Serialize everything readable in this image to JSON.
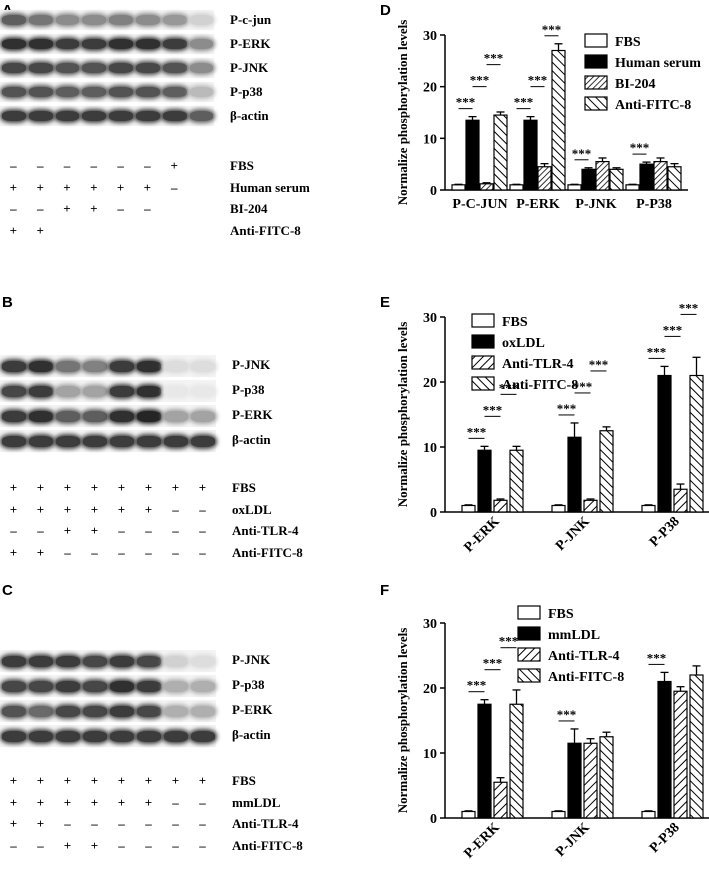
{
  "blots": [
    {
      "panel": "A",
      "bands": [
        "P-c-jun",
        "P-ERK",
        "P-JNK",
        "P-p38",
        "β-actin"
      ],
      "lanes": 8,
      "conditions": [
        {
          "label": "FBS",
          "signs": [
            "–",
            "–",
            "–",
            "–",
            "–",
            "–",
            "+",
            ""
          ]
        },
        {
          "label": "Human serum",
          "signs": [
            "+",
            "+",
            "+",
            "+",
            "+",
            "+",
            "–",
            ""
          ]
        },
        {
          "label": "BI-204",
          "signs": [
            "–",
            "–",
            "+",
            "+",
            "–",
            "–",
            "",
            ""
          ]
        },
        {
          "label": "Anti-FITC-8",
          "signs": [
            "+",
            "+",
            "",
            "",
            "",
            "",
            "",
            ""
          ]
        }
      ]
    },
    {
      "panel": "B",
      "bands": [
        "P-JNK",
        "P-p38",
        "P-ERK",
        "β-actin"
      ],
      "lanes": 8,
      "conditions": [
        {
          "label": "FBS",
          "signs": [
            "+",
            "+",
            "+",
            "+",
            "+",
            "+",
            "+",
            "+"
          ]
        },
        {
          "label": "oxLDL",
          "signs": [
            "+",
            "+",
            "+",
            "+",
            "+",
            "+",
            "–",
            "–"
          ]
        },
        {
          "label": "Anti-TLR-4",
          "signs": [
            "–",
            "–",
            "+",
            "+",
            "–",
            "–",
            "–",
            "–"
          ]
        },
        {
          "label": "Anti-FITC-8",
          "signs": [
            "+",
            "+",
            "–",
            "–",
            "–",
            "–",
            "–",
            "–"
          ]
        }
      ]
    },
    {
      "panel": "C",
      "bands": [
        "P-JNK",
        "P-p38",
        "P-ERK",
        "β-actin"
      ],
      "lanes": 8,
      "conditions": [
        {
          "label": "FBS",
          "signs": [
            "+",
            "+",
            "+",
            "+",
            "+",
            "+",
            "+",
            "+"
          ]
        },
        {
          "label": "mmLDL",
          "signs": [
            "+",
            "+",
            "+",
            "+",
            "+",
            "+",
            "–",
            "–"
          ]
        },
        {
          "label": "Anti-TLR-4",
          "signs": [
            "+",
            "+",
            "–",
            "–",
            "–",
            "–",
            "–",
            "–"
          ]
        },
        {
          "label": "Anti-FITC-8",
          "signs": [
            "–",
            "–",
            "+",
            "+",
            "–",
            "–",
            "–",
            "–"
          ]
        }
      ]
    }
  ],
  "colors": {
    "bar_fill": "#000000",
    "bar_open": "#ffffff"
  },
  "chart_data": [
    {
      "panel": "D",
      "type": "bar",
      "ylabel": "Normalize phosphorylation levels",
      "ylim": [
        0,
        30
      ],
      "yticks": [
        0,
        10,
        20,
        30
      ],
      "categories": [
        "P-C-JUN",
        "P-ERK",
        "P-JNK",
        "P-P38"
      ],
      "legend": "top-right",
      "series": [
        {
          "name": "FBS",
          "pattern": "open",
          "values": [
            1,
            1,
            1,
            1
          ],
          "errors": [
            0.1,
            0.1,
            0.1,
            0.1
          ]
        },
        {
          "name": "Human serum",
          "pattern": "solid",
          "values": [
            13.5,
            13.5,
            4,
            5
          ],
          "errors": [
            0.7,
            0.7,
            0.3,
            0.4
          ]
        },
        {
          "name": "BI-204",
          "pattern": "hatch-dense",
          "values": [
            1.2,
            4.5,
            5.5,
            5.5
          ],
          "errors": [
            0.2,
            0.6,
            0.7,
            0.7
          ]
        },
        {
          "name": "Anti-FITC-8",
          "pattern": "hatch-back",
          "values": [
            14.5,
            27,
            4,
            4.5
          ],
          "errors": [
            0.6,
            1.3,
            0.3,
            0.6
          ]
        }
      ],
      "significance": [
        {
          "category": 0,
          "from": 0,
          "to": 1,
          "label": "***"
        },
        {
          "category": 0,
          "from": 1,
          "to": 2,
          "label": "***"
        },
        {
          "category": 0,
          "from": 2,
          "to": 3,
          "label": "***"
        },
        {
          "category": 1,
          "from": 0,
          "to": 1,
          "label": "***"
        },
        {
          "category": 1,
          "from": 1,
          "to": 2,
          "label": "***"
        },
        {
          "category": 1,
          "from": 2,
          "to": 3,
          "label": "***"
        },
        {
          "category": 2,
          "from": 0,
          "to": 1,
          "label": "***"
        },
        {
          "category": 3,
          "from": 0,
          "to": 1,
          "label": "***"
        }
      ]
    },
    {
      "panel": "E",
      "type": "bar",
      "ylabel": "Normalize phosphorylation levels",
      "ylim": [
        0,
        30
      ],
      "yticks": [
        0,
        10,
        20,
        30
      ],
      "categories": [
        "P-ERK",
        "P-JNK",
        "P-P38"
      ],
      "legend": "top-left",
      "series": [
        {
          "name": "FBS",
          "pattern": "open",
          "values": [
            1,
            1,
            1
          ],
          "errors": [
            0.1,
            0.1,
            0.1
          ]
        },
        {
          "name": "oxLDL",
          "pattern": "solid",
          "values": [
            9.5,
            11.5,
            21
          ],
          "errors": [
            0.6,
            2.2,
            1.4
          ]
        },
        {
          "name": "Anti-TLR-4",
          "pattern": "hatch-wide",
          "values": [
            1.8,
            1.8,
            3.5
          ],
          "errors": [
            0.2,
            0.2,
            0.8
          ]
        },
        {
          "name": "Anti-FITC-8",
          "pattern": "hatch-back",
          "values": [
            9.5,
            12.5,
            21
          ],
          "errors": [
            0.6,
            0.6,
            2.8
          ]
        }
      ],
      "significance": [
        {
          "category": 0,
          "from": 0,
          "to": 1,
          "label": "***"
        },
        {
          "category": 0,
          "from": 1,
          "to": 2,
          "label": "***"
        },
        {
          "category": 0,
          "from": 2,
          "to": 3,
          "label": "***"
        },
        {
          "category": 1,
          "from": 0,
          "to": 1,
          "label": "***"
        },
        {
          "category": 1,
          "from": 1,
          "to": 2,
          "label": "***"
        },
        {
          "category": 1,
          "from": 2,
          "to": 3,
          "label": "***"
        },
        {
          "category": 2,
          "from": 0,
          "to": 1,
          "label": "***"
        },
        {
          "category": 2,
          "from": 1,
          "to": 2,
          "label": "***"
        },
        {
          "category": 2,
          "from": 2,
          "to": 3,
          "label": "***"
        }
      ]
    },
    {
      "panel": "F",
      "type": "bar",
      "ylabel": "Normalize phosphorylation levels",
      "ylim": [
        0,
        30
      ],
      "yticks": [
        0,
        10,
        20,
        30
      ],
      "categories": [
        "P-ERK",
        "P-JNK",
        "P-P38"
      ],
      "legend": "top-left",
      "series": [
        {
          "name": "FBS",
          "pattern": "open",
          "values": [
            1,
            1,
            1
          ],
          "errors": [
            0.1,
            0.1,
            0.1
          ]
        },
        {
          "name": "mmLDL",
          "pattern": "solid",
          "values": [
            17.5,
            11.5,
            21
          ],
          "errors": [
            0.7,
            2.2,
            1.4
          ]
        },
        {
          "name": "Anti-TLR-4",
          "pattern": "hatch-wide",
          "values": [
            5.5,
            11.5,
            19.5
          ],
          "errors": [
            0.7,
            0.7,
            0.7
          ]
        },
        {
          "name": "Anti-FITC-8",
          "pattern": "hatch-back",
          "values": [
            17.5,
            12.5,
            22
          ],
          "errors": [
            2.2,
            0.7,
            1.4
          ]
        }
      ],
      "significance": [
        {
          "category": 0,
          "from": 0,
          "to": 1,
          "label": "***"
        },
        {
          "category": 0,
          "from": 1,
          "to": 2,
          "label": "***"
        },
        {
          "category": 0,
          "from": 2,
          "to": 3,
          "label": "***"
        },
        {
          "category": 1,
          "from": 0,
          "to": 1,
          "label": "***"
        },
        {
          "category": 2,
          "from": 0,
          "to": 1,
          "label": "***"
        }
      ]
    }
  ]
}
